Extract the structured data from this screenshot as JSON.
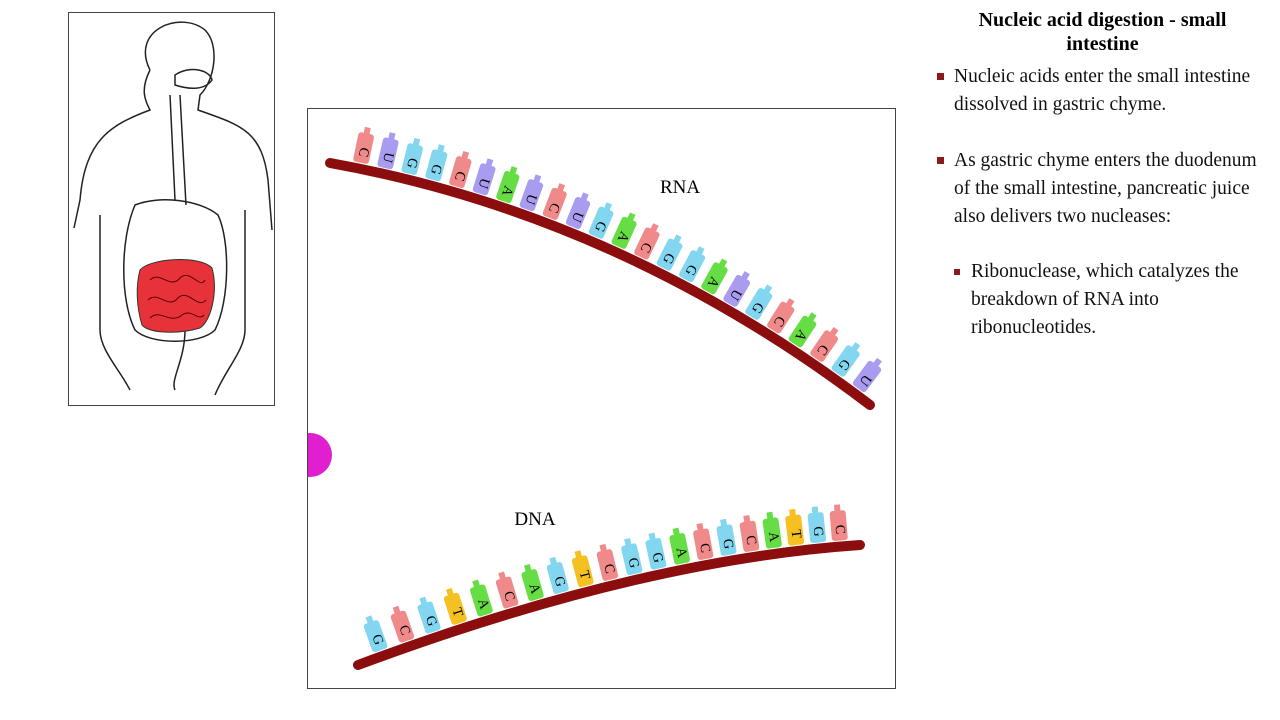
{
  "header": {
    "title": "Nucleic acid digestion - small intestine"
  },
  "bullets": [
    {
      "text": "Nucleic acids enter the small intestine dissolved in gastric chyme."
    },
    {
      "text": "As gastric chyme enters the duodenum of the small intestine, pancreatic juice also delivers two nucleases:"
    },
    {
      "text": "Ribonuclease, which catalyzes the breakdown of RNA into ribonucleotides.",
      "level": 2
    }
  ],
  "diagram": {
    "rna": {
      "label": "RNA",
      "bases": [
        "C",
        "U",
        "G",
        "G",
        "C",
        "U",
        "A",
        "U",
        "C",
        "U",
        "G",
        "A",
        "C",
        "G",
        "G",
        "A",
        "U",
        "G",
        "C",
        "A",
        "C",
        "G",
        "U"
      ]
    },
    "dna": {
      "label": "DNA",
      "bases": [
        "G",
        "C",
        "G",
        "T",
        "A",
        "C",
        "A",
        "G",
        "T",
        "C",
        "G",
        "G",
        "A",
        "C",
        "G",
        "C",
        "A",
        "T",
        "G",
        "C"
      ]
    }
  }
}
